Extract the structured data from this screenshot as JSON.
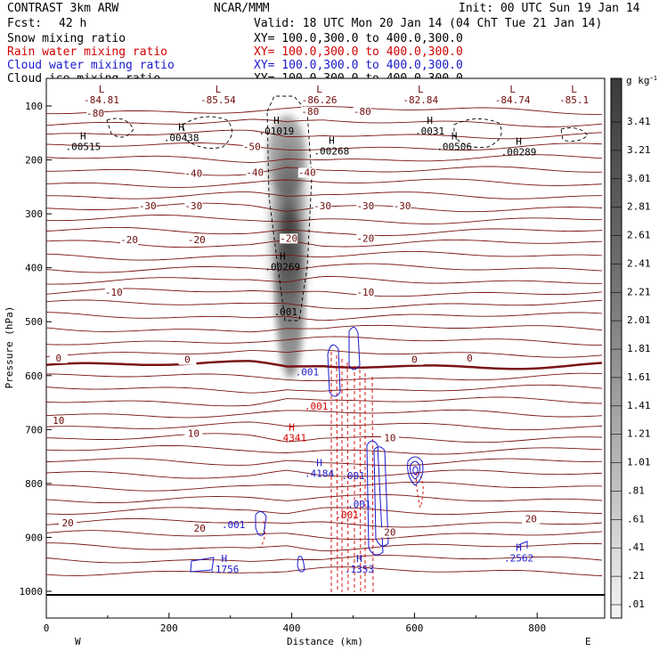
{
  "header": {
    "model": "CONTRAST  3km ARW",
    "forecast_label": "Fcst:",
    "forecast_value": "42 h",
    "center": "NCAR/MMM",
    "init": "Init: 00 UTC Sun 19 Jan 14",
    "valid": "Valid: 18 UTC Mon 20 Jan 14 (04 ChT Tue 21 Jan 14)",
    "fields": [
      {
        "name": "Snow mixing ratio",
        "xy": "XY= 100.0,300.0 to 400.0,300.0",
        "color": "#000000"
      },
      {
        "name": "Rain water mixing ratio",
        "xy": "XY= 100.0,300.0 to 400.0,300.0",
        "color": "#d40000"
      },
      {
        "name": "Cloud water mixing ratio",
        "xy": "XY= 100.0,300.0 to 400.0,300.0",
        "color": "#1a1acc"
      },
      {
        "name": "Cloud ice mixing ratio",
        "xy": "XY= 100.0,300.0 to 400.0,300.0",
        "color": "#000000"
      }
    ]
  },
  "chart_data": {
    "type": "cross-section",
    "xlabel": "Distance (km)",
    "ylabel": "Pressure (hPa)",
    "xlim": [
      0,
      910
    ],
    "ylim": [
      1040,
      50
    ],
    "x_ticks": [
      0,
      200,
      400,
      600,
      800
    ],
    "y_ticks": [
      100,
      200,
      300,
      400,
      500,
      600,
      700,
      800,
      900,
      1000
    ],
    "direction_labels": {
      "left": "W",
      "right": "E"
    },
    "colorbar": {
      "unit": "g kg",
      "unit_exp": "−1",
      "ticks": [
        "3.41",
        "3.21",
        "3.01",
        "2.81",
        "2.61",
        "2.41",
        "2.21",
        "2.01",
        "1.81",
        "1.61",
        "1.41",
        "1.21",
        "1.01",
        ".81",
        ".61",
        ".41",
        ".21",
        ".01"
      ]
    },
    "temperature_labels": [
      {
        "x": 80,
        "p": 118,
        "t": "-80"
      },
      {
        "x": 515,
        "p": 115,
        "t": "-80"
      },
      {
        "x": 430,
        "p": 115,
        "t": "-80"
      },
      {
        "x": 335,
        "p": 180,
        "t": "-50"
      },
      {
        "x": 240,
        "p": 230,
        "t": "-40"
      },
      {
        "x": 340,
        "p": 228,
        "t": "-40"
      },
      {
        "x": 425,
        "p": 228,
        "t": "-40"
      },
      {
        "x": 165,
        "p": 290,
        "t": "-30"
      },
      {
        "x": 240,
        "p": 290,
        "t": "-30"
      },
      {
        "x": 450,
        "p": 290,
        "t": "-30"
      },
      {
        "x": 520,
        "p": 290,
        "t": "-30"
      },
      {
        "x": 580,
        "p": 290,
        "t": "-30"
      },
      {
        "x": 135,
        "p": 353,
        "t": "-20"
      },
      {
        "x": 245,
        "p": 353,
        "t": "-20"
      },
      {
        "x": 395,
        "p": 350,
        "t": "-20"
      },
      {
        "x": 520,
        "p": 350,
        "t": "-20"
      },
      {
        "x": 110,
        "p": 450,
        "t": "-10"
      },
      {
        "x": 520,
        "p": 450,
        "t": "-10"
      },
      {
        "x": 20,
        "p": 572,
        "t": "0"
      },
      {
        "x": 230,
        "p": 575,
        "t": "0"
      },
      {
        "x": 600,
        "p": 575,
        "t": "0"
      },
      {
        "x": 690,
        "p": 572,
        "t": "0"
      },
      {
        "x": 20,
        "p": 688,
        "t": "10"
      },
      {
        "x": 240,
        "p": 712,
        "t": "10"
      },
      {
        "x": 560,
        "p": 720,
        "t": "10"
      },
      {
        "x": 35,
        "p": 878,
        "t": "20"
      },
      {
        "x": 250,
        "p": 888,
        "t": "20"
      },
      {
        "x": 560,
        "p": 895,
        "t": "20"
      },
      {
        "x": 790,
        "p": 870,
        "t": "20"
      }
    ],
    "extrema_labels": [
      {
        "x": 90,
        "p": 85,
        "sym": "L",
        "value": "-84.81",
        "color": "#6e0b0b"
      },
      {
        "x": 280,
        "p": 85,
        "sym": "L",
        "value": "-85.54",
        "color": "#6e0b0b"
      },
      {
        "x": 445,
        "p": 85,
        "sym": "L",
        "value": "-86.26",
        "color": "#6e0b0b"
      },
      {
        "x": 610,
        "p": 85,
        "sym": "L",
        "value": "-82.84",
        "color": "#6e0b0b"
      },
      {
        "x": 760,
        "p": 85,
        "sym": "L",
        "value": "-84.74",
        "color": "#6e0b0b"
      },
      {
        "x": 860,
        "p": 85,
        "sym": "L",
        "value": "-85.1",
        "color": "#6e0b0b"
      },
      {
        "x": 60,
        "p": 172,
        "sym": "H",
        "value": ".00515",
        "color": "#000000"
      },
      {
        "x": 220,
        "p": 155,
        "sym": "H",
        "value": ".00438",
        "color": "#000000"
      },
      {
        "x": 375,
        "p": 143,
        "sym": "H",
        "value": ".01019",
        "color": "#000000"
      },
      {
        "x": 465,
        "p": 180,
        "sym": "H",
        "value": ".00268",
        "color": "#000000"
      },
      {
        "x": 625,
        "p": 143,
        "sym": "H",
        "value": ".0031",
        "color": "#000000"
      },
      {
        "x": 665,
        "p": 172,
        "sym": "H",
        "value": ".00506",
        "color": "#000000"
      },
      {
        "x": 770,
        "p": 182,
        "sym": "H",
        "value": ".00289",
        "color": "#000000"
      },
      {
        "x": 385,
        "p": 395,
        "sym": "H",
        "value": ".00269",
        "color": "#000000"
      },
      {
        "x": 390,
        "p": 478,
        "sym": "",
        "value": ".001",
        "color": "#000000"
      },
      {
        "x": 425,
        "p": 590,
        "sym": "",
        "value": ".001",
        "color": "#1a1acc"
      },
      {
        "x": 440,
        "p": 653,
        "sym": "",
        "value": ".001",
        "color": "#d40000"
      },
      {
        "x": 400,
        "p": 712,
        "sym": "H",
        "value": ".4341",
        "color": "#d40000"
      },
      {
        "x": 445,
        "p": 778,
        "sym": "H",
        "value": ".4184",
        "color": "#1a1acc"
      },
      {
        "x": 500,
        "p": 782,
        "sym": "",
        "value": ".001",
        "color": "#1a1acc"
      },
      {
        "x": 510,
        "p": 835,
        "sym": "",
        "value": ".001",
        "color": "#1a1acc"
      },
      {
        "x": 490,
        "p": 855,
        "sym": "",
        "value": ".001",
        "color": "#d40000"
      },
      {
        "x": 305,
        "p": 873,
        "sym": "",
        "value": ".001",
        "color": "#1a1acc"
      },
      {
        "x": 290,
        "p": 955,
        "sym": "H",
        "value": ".1756",
        "color": "#1a1acc"
      },
      {
        "x": 510,
        "p": 955,
        "sym": "H",
        "value": ".1353",
        "color": "#1a1acc"
      },
      {
        "x": 770,
        "p": 935,
        "sym": "H",
        "value": ".2562",
        "color": "#1a1acc"
      }
    ]
  }
}
